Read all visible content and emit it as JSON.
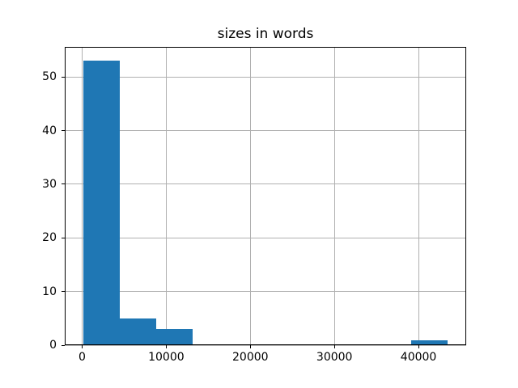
{
  "chart_data": {
    "type": "bar",
    "subtype": "histogram",
    "title": "sizes in words",
    "xlabel": "",
    "ylabel": "",
    "bin_edges": [
      100,
      4440,
      8780,
      13120,
      17460,
      21800,
      26140,
      30480,
      34820,
      39160,
      43500
    ],
    "counts": [
      53,
      5,
      3,
      0,
      0,
      0,
      0,
      0,
      0,
      1
    ],
    "xlim": [
      -2070,
      45670
    ],
    "ylim": [
      0,
      55.65
    ],
    "xticks": [
      0,
      10000,
      20000,
      30000,
      40000
    ],
    "xtick_labels": [
      "0",
      "10000",
      "20000",
      "30000",
      "40000"
    ],
    "yticks": [
      0,
      10,
      20,
      30,
      40,
      50
    ],
    "ytick_labels": [
      "0",
      "10",
      "20",
      "30",
      "40",
      "50"
    ],
    "grid": true,
    "legend": false,
    "bar_color": "#1f77b4",
    "grid_color": "#b0b0b0",
    "axis_color": "#000000",
    "background_color": "#ffffff"
  }
}
